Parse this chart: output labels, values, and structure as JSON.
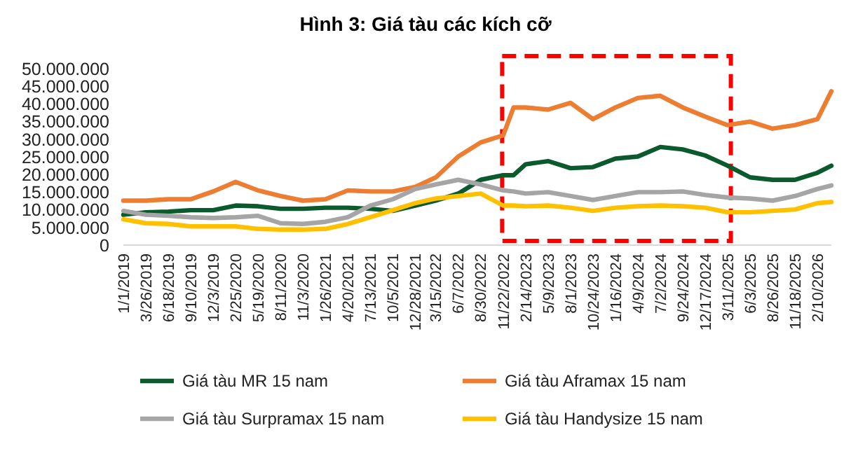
{
  "chart_data": {
    "type": "line",
    "title": "Hình 3: Giá tàu các kích cỡ",
    "x": [
      "2019-01-01",
      "2019-03-26",
      "2019-06-18",
      "2019-09-10",
      "2019-12-03",
      "2020-02-25",
      "2020-05-19",
      "2020-08-11",
      "2020-11-03",
      "2021-01-26",
      "2021-04-20",
      "2021-07-13",
      "2021-10-05",
      "2021-12-28",
      "2022-03-15",
      "2022-06-07",
      "2022-08-30",
      "2022-11-22",
      "2022-12-31",
      "2023-02-14",
      "2023-05-09",
      "2023-08-01",
      "2023-10-24",
      "2024-01-16",
      "2024-04-09",
      "2024-07-02",
      "2024-09-24",
      "2024-12-17",
      "2025-03-11",
      "2025-06-03",
      "2025-08-26",
      "2025-11-18",
      "2026-02-10",
      "2026-04-03"
    ],
    "series": [
      {
        "name": "Giá tàu MR 15 nam",
        "color": "#0b5a2e",
        "values": [
          8600000,
          9300000,
          9500000,
          9900000,
          9900000,
          11200000,
          11000000,
          10300000,
          10300000,
          10600000,
          10600000,
          10300000,
          9700000,
          11200000,
          12600000,
          14600000,
          18500000,
          19800000,
          19800000,
          22900000,
          23800000,
          21800000,
          22100000,
          24500000,
          25100000,
          27800000,
          27100000,
          25400000,
          22500000,
          19200000,
          18500000,
          18500000,
          20500000,
          22500000
        ]
      },
      {
        "name": "Giá tàu Aframax 15 nam",
        "color": "#ed7d31",
        "values": [
          12600000,
          12600000,
          13000000,
          13000000,
          15200000,
          17900000,
          15500000,
          13900000,
          12600000,
          13000000,
          15500000,
          15200000,
          15200000,
          16500000,
          19200000,
          25100000,
          29100000,
          31100000,
          39000000,
          39000000,
          38400000,
          40300000,
          35700000,
          39000000,
          41700000,
          42300000,
          39000000,
          36400000,
          34000000,
          35000000,
          33000000,
          34000000,
          35700000,
          43600000
        ]
      },
      {
        "name": "Giá tàu Surpramax 15 nam",
        "color": "#a5a5a5",
        "values": [
          9700000,
          8600000,
          8300000,
          7900000,
          7700000,
          7900000,
          8300000,
          6200000,
          6000000,
          6600000,
          7900000,
          11200000,
          13000000,
          15900000,
          17200000,
          18500000,
          17200000,
          15500000,
          15200000,
          14600000,
          15000000,
          13900000,
          12800000,
          13900000,
          15000000,
          15000000,
          15200000,
          14200000,
          13500000,
          13200000,
          12600000,
          13900000,
          15900000,
          16900000
        ]
      },
      {
        "name": "Giá tàu Handysize 15 nam",
        "color": "#ffc000",
        "values": [
          7300000,
          6200000,
          6000000,
          5300000,
          5300000,
          5300000,
          4600000,
          4400000,
          4400000,
          4600000,
          6000000,
          7900000,
          9900000,
          11900000,
          13200000,
          13900000,
          14600000,
          11200000,
          11200000,
          11000000,
          11200000,
          10600000,
          9700000,
          10600000,
          11000000,
          11200000,
          11000000,
          10600000,
          9300000,
          9300000,
          9700000,
          10100000,
          11900000,
          12200000
        ]
      }
    ],
    "xlim": [
      "2019-01-01",
      "2026-04-03"
    ],
    "xticks": [
      {
        "value": "2019-01-01",
        "label": "1/1/2019"
      },
      {
        "value": "2019-03-26",
        "label": "3/26/2019"
      },
      {
        "value": "2019-06-18",
        "label": "6/18/2019"
      },
      {
        "value": "2019-09-10",
        "label": "9/10/2019"
      },
      {
        "value": "2019-12-03",
        "label": "12/3/2019"
      },
      {
        "value": "2020-02-25",
        "label": "2/25/2020"
      },
      {
        "value": "2020-05-19",
        "label": "5/19/2020"
      },
      {
        "value": "2020-08-11",
        "label": "8/11/2020"
      },
      {
        "value": "2020-11-03",
        "label": "11/3/2020"
      },
      {
        "value": "2021-01-26",
        "label": "1/26/2021"
      },
      {
        "value": "2021-04-20",
        "label": "4/20/2021"
      },
      {
        "value": "2021-07-13",
        "label": "7/13/2021"
      },
      {
        "value": "2021-10-05",
        "label": "10/5/2021"
      },
      {
        "value": "2021-12-28",
        "label": "12/28/2021"
      },
      {
        "value": "2022-03-15",
        "label": "3/15/2022"
      },
      {
        "value": "2022-06-07",
        "label": "6/7/2022"
      },
      {
        "value": "2022-08-30",
        "label": "8/30/2022"
      },
      {
        "value": "2022-11-22",
        "label": "11/22/2022"
      },
      {
        "value": "2023-02-14",
        "label": "2/14/2023"
      },
      {
        "value": "2023-05-09",
        "label": "5/9/2023"
      },
      {
        "value": "2023-08-01",
        "label": "8/1/2023"
      },
      {
        "value": "2023-10-24",
        "label": "10/24/2023"
      },
      {
        "value": "2024-01-16",
        "label": "1/16/2024"
      },
      {
        "value": "2024-04-09",
        "label": "4/9/2024"
      },
      {
        "value": "2024-07-02",
        "label": "7/2/2024"
      },
      {
        "value": "2024-09-24",
        "label": "9/24/2024"
      },
      {
        "value": "2024-12-17",
        "label": "12/17/2024"
      },
      {
        "value": "2025-03-11",
        "label": "3/11/2025"
      },
      {
        "value": "2025-06-03",
        "label": "6/3/2025"
      },
      {
        "value": "2025-08-26",
        "label": "8/26/2025"
      },
      {
        "value": "2025-11-18",
        "label": "11/18/2025"
      },
      {
        "value": "2026-02-10",
        "label": "2/10/2026"
      }
    ],
    "ylim": [
      0,
      50000000
    ],
    "yticks": [
      {
        "value": 0,
        "label": "0"
      },
      {
        "value": 5000000,
        "label": "5.000.000"
      },
      {
        "value": 10000000,
        "label": "10.000.000"
      },
      {
        "value": 15000000,
        "label": "15.000.000"
      },
      {
        "value": 20000000,
        "label": "20.000.000"
      },
      {
        "value": 25000000,
        "label": "25.000.000"
      },
      {
        "value": 30000000,
        "label": "30.000.000"
      },
      {
        "value": 35000000,
        "label": "35.000.000"
      },
      {
        "value": 40000000,
        "label": "40.000.000"
      },
      {
        "value": 45000000,
        "label": "45.000.000"
      },
      {
        "value": 50000000,
        "label": "50.000.000"
      }
    ],
    "legend": "bottom",
    "line_style": "solid",
    "marker": "none"
  }
}
